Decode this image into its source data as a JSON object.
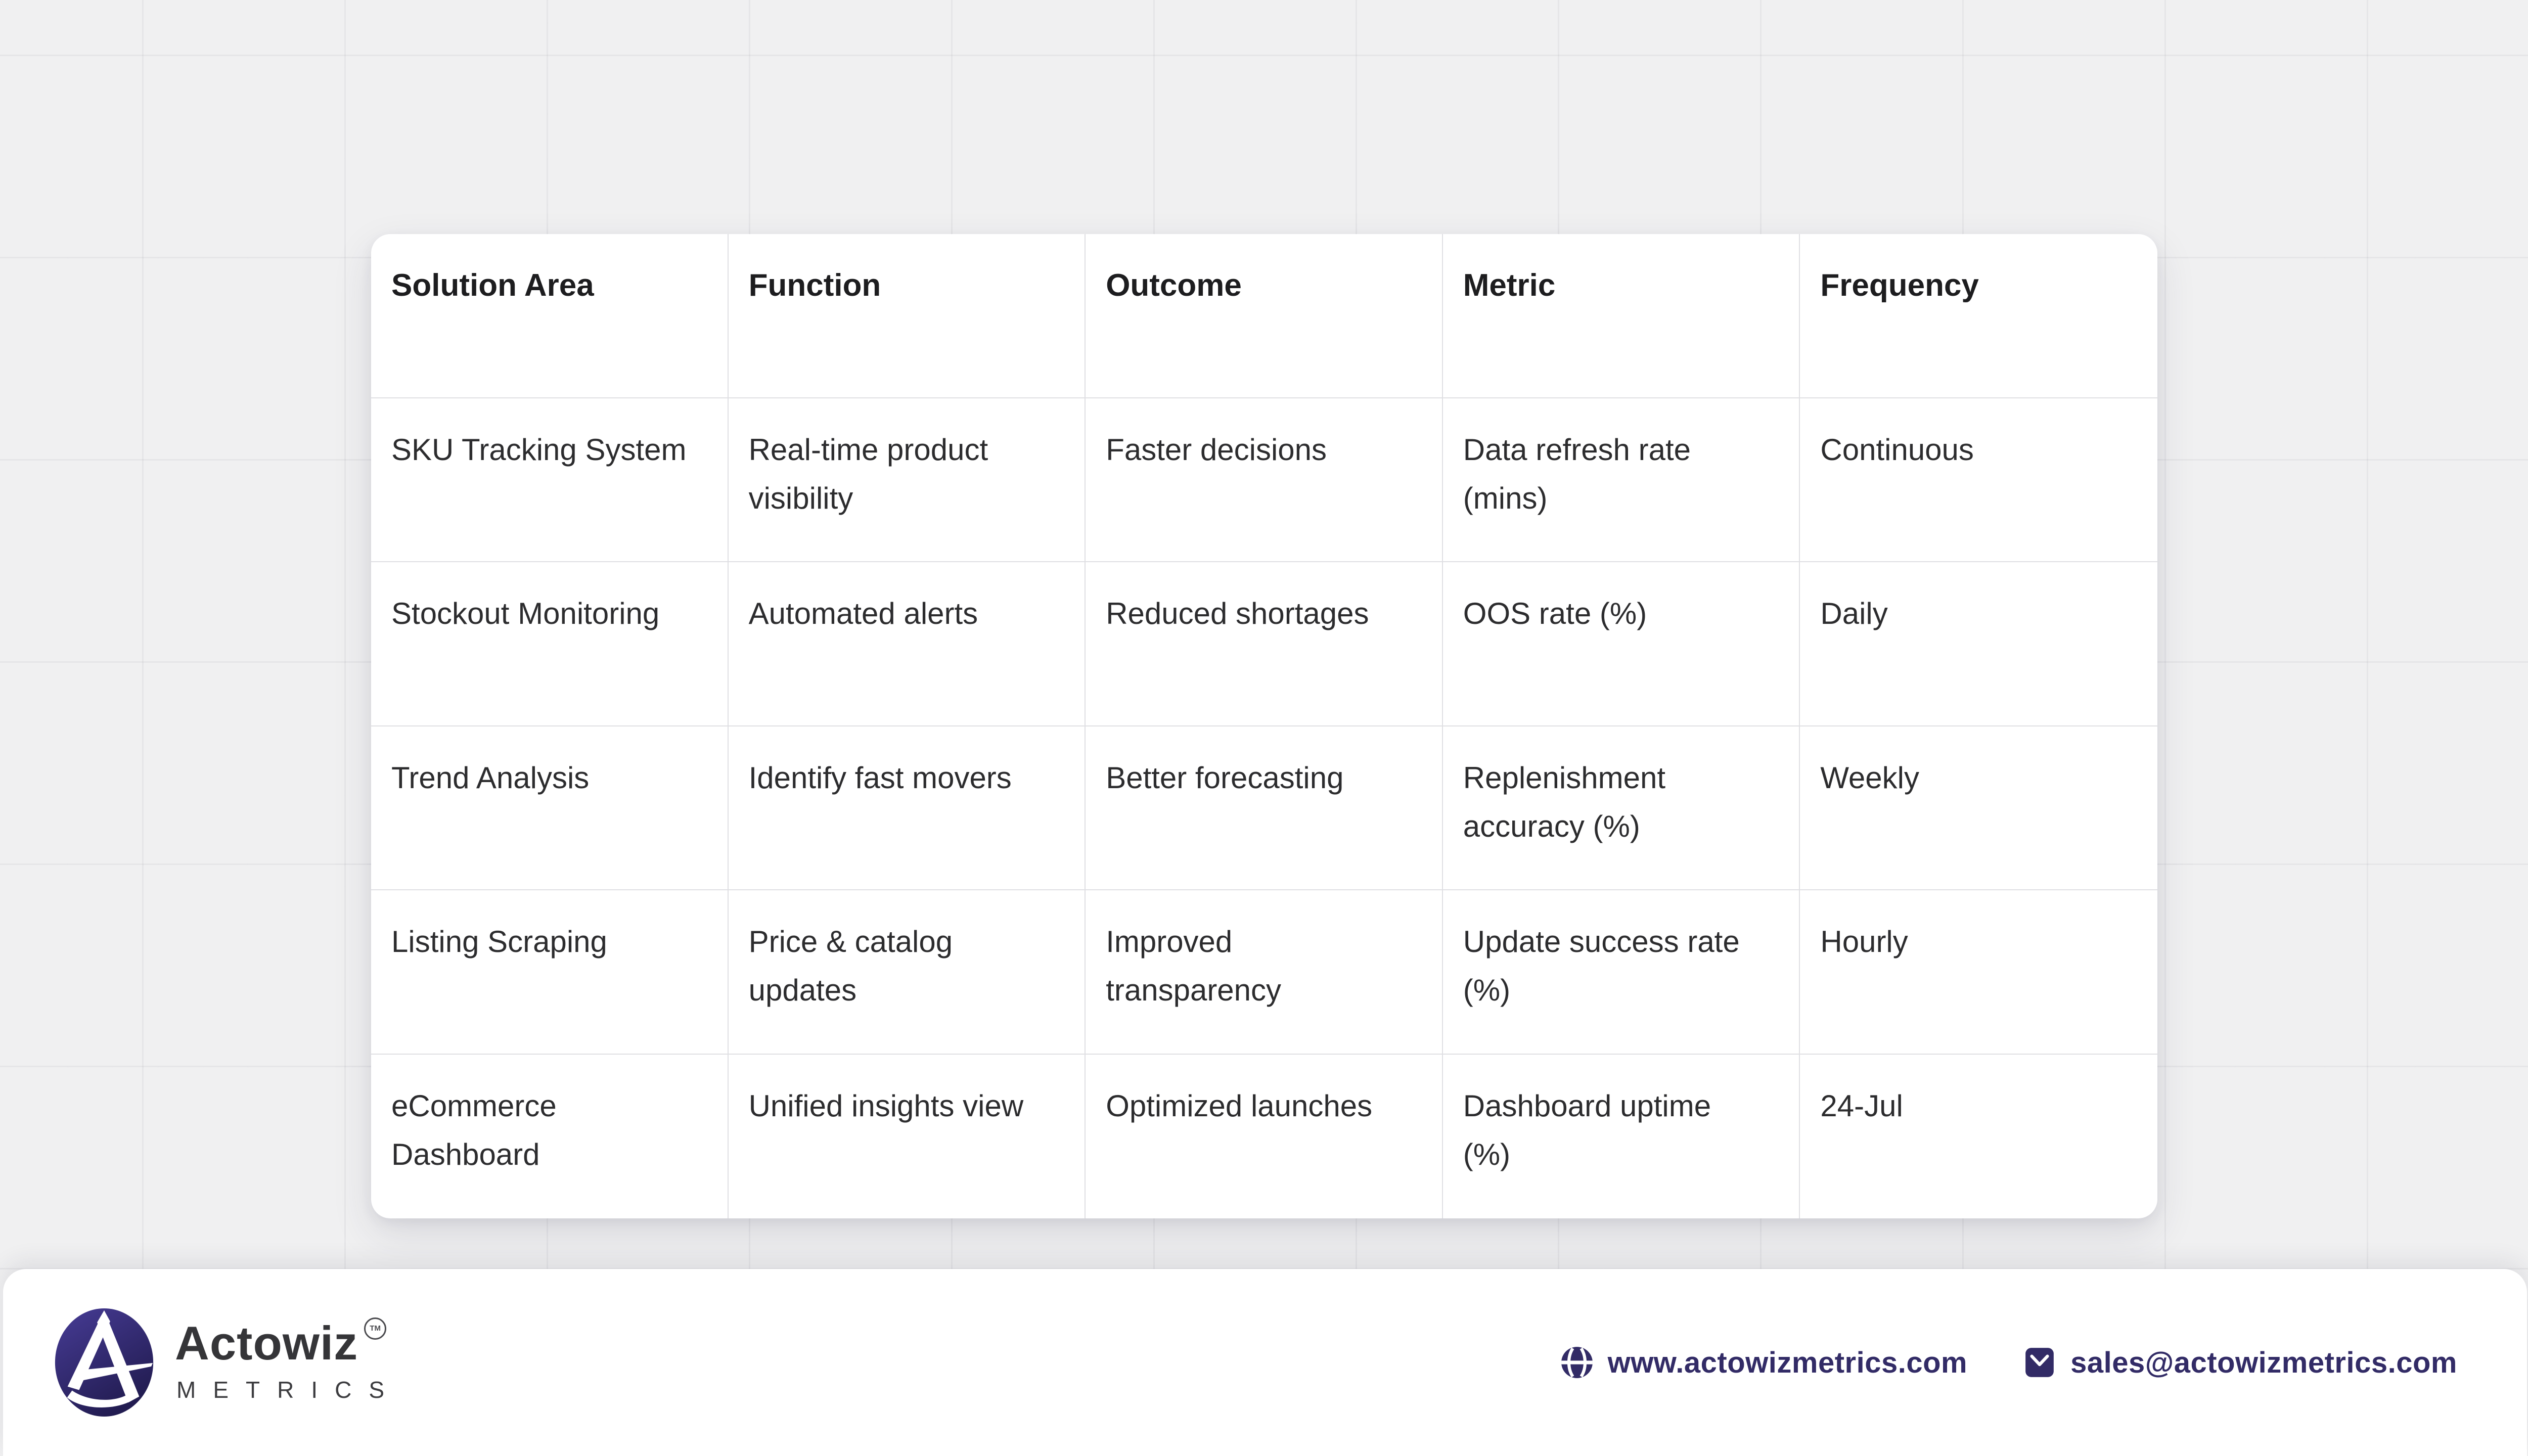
{
  "table": {
    "columns": [
      "Solution Area",
      "Function",
      "Outcome",
      "Metric",
      "Frequency"
    ],
    "rows": [
      [
        "SKU Tracking System",
        "Real-time product\nvisibility",
        "Faster decisions",
        "Data refresh rate\n(mins)",
        "Continuous"
      ],
      [
        "Stockout Monitoring",
        "Automated alerts",
        "Reduced shortages",
        "OOS rate (%)",
        "Daily"
      ],
      [
        "Trend Analysis",
        "Identify fast movers",
        "Better forecasting",
        "Replenishment\naccuracy (%)",
        "Weekly"
      ],
      [
        "Listing Scraping",
        "Price & catalog\nupdates",
        "Improved\ntransparency",
        "Update success rate\n(%)",
        "Hourly"
      ],
      [
        "eCommerce\nDashboard",
        "Unified insights view",
        "Optimized launches",
        "Dashboard uptime\n(%)",
        "24-Jul"
      ]
    ]
  },
  "footer": {
    "brand_name": "Actowiz",
    "brand_trademark": "TM",
    "brand_subtitle": "METRICS",
    "website_label": "www.actowizmetrics.com",
    "email_label": "sales@actowizmetrics.com",
    "icons": {
      "website": "globe-icon",
      "email": "mail-icon",
      "brand": "actowiz-logo-icon"
    }
  },
  "colors": {
    "page_background": "#f0f0f1",
    "card_background": "#ffffff",
    "cell_border": "#dfdfe3",
    "table_text": "#2c2c2e",
    "header_text": "#1d1d1f",
    "accent_navy": "#322b66",
    "brand_text": "#353538",
    "logo_gradient_start": "#473c96",
    "logo_gradient_end": "#221c51"
  }
}
